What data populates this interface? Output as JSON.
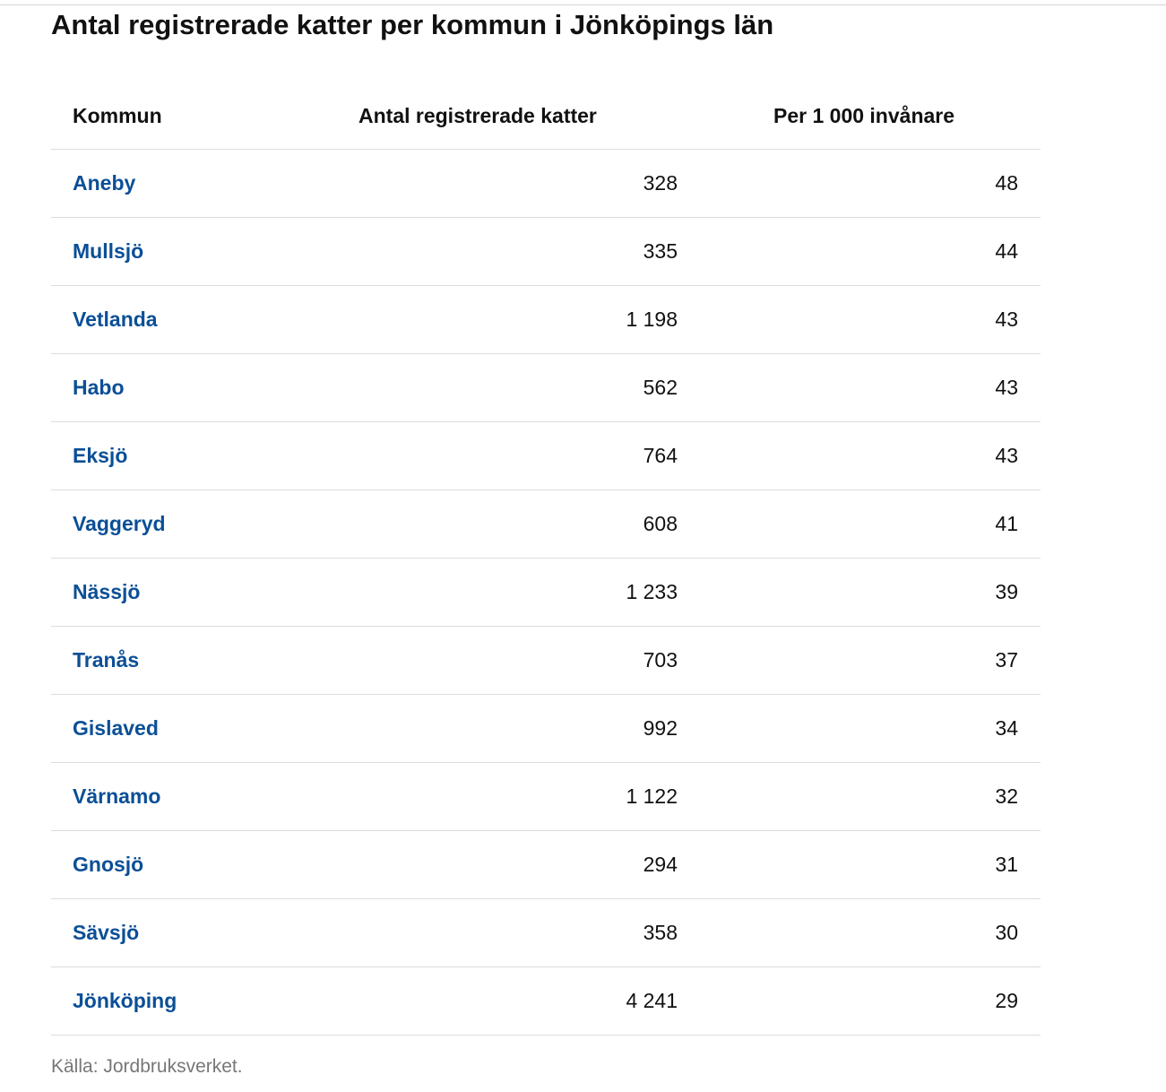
{
  "title": "Antal registrerade katter per kommun i Jönköpings län",
  "table": {
    "headers": {
      "kommun": "Kommun",
      "antal": "Antal registrerade katter",
      "per": "Per 1 000 invånare"
    },
    "rows": [
      {
        "kommun": "Aneby",
        "antal": "328",
        "per": "48"
      },
      {
        "kommun": "Mullsjö",
        "antal": "335",
        "per": "44"
      },
      {
        "kommun": "Vetlanda",
        "antal": "1 198",
        "per": "43"
      },
      {
        "kommun": "Habo",
        "antal": "562",
        "per": "43"
      },
      {
        "kommun": "Eksjö",
        "antal": "764",
        "per": "43"
      },
      {
        "kommun": "Vaggeryd",
        "antal": "608",
        "per": "41"
      },
      {
        "kommun": "Nässjö",
        "antal": "1 233",
        "per": "39"
      },
      {
        "kommun": "Tranås",
        "antal": "703",
        "per": "37"
      },
      {
        "kommun": "Gislaved",
        "antal": "992",
        "per": "34"
      },
      {
        "kommun": "Värnamo",
        "antal": "1 122",
        "per": "32"
      },
      {
        "kommun": "Gnosjö",
        "antal": "294",
        "per": "31"
      },
      {
        "kommun": "Sävsjö",
        "antal": "358",
        "per": "30"
      },
      {
        "kommun": "Jönköping",
        "antal": "4 241",
        "per": "29"
      }
    ]
  },
  "source": "Källa: Jordbruksverket.",
  "colors": {
    "link": "#0b4f96",
    "text": "#111111",
    "muted": "#777777",
    "divider": "#dcdcdc"
  }
}
